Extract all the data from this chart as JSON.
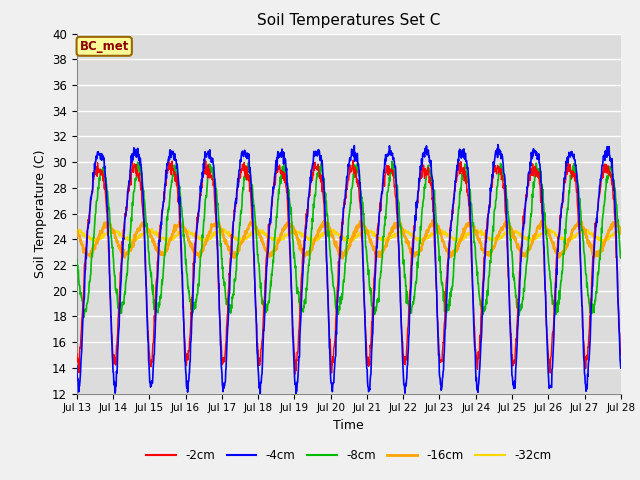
{
  "title": "Soil Temperatures Set C",
  "xlabel": "Time",
  "ylabel": "Soil Temperature (C)",
  "ylim": [
    12,
    40
  ],
  "yticks": [
    12,
    14,
    16,
    18,
    20,
    22,
    24,
    26,
    28,
    30,
    32,
    34,
    36,
    38,
    40
  ],
  "legend_label": "BC_met",
  "legend_text_color": "#8B0000",
  "legend_bg_color": "#FFFF99",
  "legend_border_color": "#996600",
  "series_colors": {
    "-2cm": "#FF0000",
    "-4cm": "#0000FF",
    "-8cm": "#00BB00",
    "-16cm": "#FFA500",
    "-32cm": "#FFD700"
  },
  "series_linewidths": {
    "-2cm": 1.0,
    "-4cm": 1.2,
    "-8cm": 1.2,
    "-16cm": 1.8,
    "-32cm": 1.5
  },
  "xtick_labels": [
    "Jul 13",
    "Jul 14",
    "Jul 15",
    "Jul 16",
    "Jul 17",
    "Jul 18",
    "Jul 19",
    "Jul 20",
    "Jul 21",
    "Jul 22",
    "Jul 23",
    "Jul 24",
    "Jul 25",
    "Jul 26",
    "Jul 27",
    "Jul 28"
  ],
  "background_color": "#DCDCDC",
  "grid_color": "#FFFFFF",
  "fig_facecolor": "#F0F0F0"
}
